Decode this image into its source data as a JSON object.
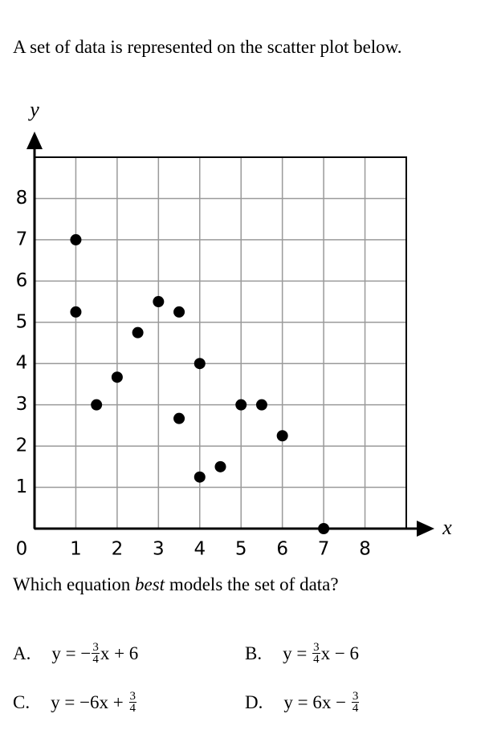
{
  "question": "A set of data is represented on the scatter plot below.",
  "chart_data": {
    "type": "scatter",
    "x_label": "x",
    "y_label": "y",
    "x": [
      1,
      1,
      1.5,
      2,
      2.5,
      3,
      3.5,
      3.5,
      4,
      4,
      4.5,
      5,
      5.5,
      6,
      7
    ],
    "values": [
      7,
      5.25,
      3,
      3.67,
      4.75,
      5.5,
      5.25,
      2.67,
      4,
      1.25,
      1.5,
      3,
      3,
      2.25,
      0
    ],
    "color": "#000000",
    "xlim": [
      0,
      9
    ],
    "ylim": [
      0,
      9
    ],
    "xticks": [
      0,
      1,
      2,
      3,
      4,
      5,
      6,
      7,
      8
    ],
    "yticks": [
      0,
      1,
      2,
      3,
      4,
      5,
      6,
      7,
      8
    ],
    "grid": true
  },
  "prompt": [
    "Which equation ",
    "best",
    " models the set of data?"
  ],
  "choices": [
    {
      "letter": "A.",
      "pre": "y = −",
      "num": "3",
      "den": "4",
      "post": "x + 6"
    },
    {
      "letter": "B.",
      "pre": "y = ",
      "num": "3",
      "den": "4",
      "post": "x − 6"
    },
    {
      "letter": "C.",
      "pre": "y = −6x + ",
      "num": "3",
      "den": "4"
    },
    {
      "letter": "D.",
      "pre": "y = 6x − ",
      "num": "3",
      "den": "4"
    }
  ]
}
